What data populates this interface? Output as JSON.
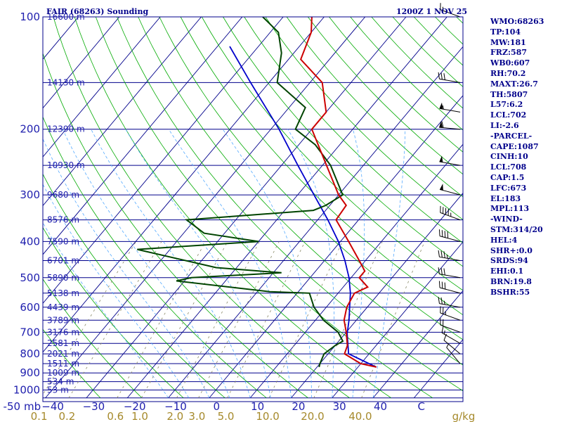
{
  "header": {
    "station": "FAIR (68263) Sounding",
    "time": "1200Z  1 NOV 25"
  },
  "stats": [
    "WMO:68263",
    "TP:104",
    "MW:181",
    "FRZ:587",
    "WB0:607",
    "RH:70.2",
    "MAXT:26.7",
    "TH:5807",
    "L57:6.2",
    "LCL:702",
    "LI:-2.6",
    "-PARCEL-",
    "CAPE:1087",
    "CINH:10",
    "LCL:708",
    "CAP:1.5",
    "LFC:673",
    "EL:183",
    "MPL:113",
    "-WIND-",
    "STM:314/20",
    "HEL:4",
    "SHR+:0.0",
    "SRDS:94",
    "EHI:0.1",
    "BRN:19.8",
    "BSHR:55"
  ],
  "colors": {
    "isobar": "#00008b",
    "isotherm": "#00008b",
    "dryAdiabat": "#00aa00",
    "moistAdiabat": "#55aaff",
    "mixing": "#888866",
    "temp": "#cc0000",
    "dewpoint": "#004400",
    "parcel": "#0000cc",
    "frame": "#00008b",
    "wind": "#000000"
  },
  "chart_data": {
    "type": "line",
    "title": "FAIR (68263) Sounding",
    "xlabel": "Temperature (C)",
    "ylabel": "Pressure (mb)",
    "axis_unit_label": "mb",
    "mixing_unit_label": "g/kg",
    "pressure_ticks": [
      100,
      200,
      300,
      400,
      500,
      600,
      700,
      800,
      900,
      1000
    ],
    "temperature_ticks": [
      -50,
      -40,
      -30,
      -20,
      -10,
      0,
      10,
      20,
      30,
      40,
      50
    ],
    "temperature_tick_labels": [
      "-50",
      "−40",
      "−30",
      "−20",
      "−10",
      "0",
      "10",
      "20",
      "30",
      "40",
      "C"
    ],
    "mixing_ratio_labels": [
      "0.1",
      "0.2",
      "0.6",
      "1.0",
      "2.0",
      "3.0",
      "5.0",
      "10.0",
      "20.0",
      "40.0"
    ],
    "height_labels": [
      {
        "p": 100,
        "label": "16600 m"
      },
      {
        "p": 150,
        "label": "14130 m"
      },
      {
        "p": 200,
        "label": "12390 m"
      },
      {
        "p": 250,
        "label": "10930 m"
      },
      {
        "p": 300,
        "label": "9680 m"
      },
      {
        "p": 350,
        "label": "8576 m"
      },
      {
        "p": 400,
        "label": "7590 m"
      },
      {
        "p": 450,
        "label": "6701 m"
      },
      {
        "p": 500,
        "label": "5890 m"
      },
      {
        "p": 550,
        "label": "5138 m"
      },
      {
        "p": 600,
        "label": "4439 m"
      },
      {
        "p": 650,
        "label": "3789 m"
      },
      {
        "p": 700,
        "label": "3176 m"
      },
      {
        "p": 750,
        "label": "2581 m"
      },
      {
        "p": 800,
        "label": "2021 m"
      },
      {
        "p": 850,
        "label": "1511 m"
      },
      {
        "p": 900,
        "label": "1009 m"
      },
      {
        "p": 950,
        "label": "534 m"
      },
      {
        "p": 1000,
        "label": "53 m"
      }
    ],
    "series": [
      {
        "name": "temperature",
        "points": [
          [
            868,
            34.5
          ],
          [
            850,
            30
          ],
          [
            800,
            24
          ],
          [
            760,
            23
          ],
          [
            700,
            20
          ],
          [
            650,
            17
          ],
          [
            600,
            15
          ],
          [
            550,
            14
          ],
          [
            530,
            16
          ],
          [
            500,
            12
          ],
          [
            480,
            12
          ],
          [
            450,
            8.5
          ],
          [
            400,
            2
          ],
          [
            350,
            -5.5
          ],
          [
            320,
            -6
          ],
          [
            300,
            -10
          ],
          [
            250,
            -19
          ],
          [
            200,
            -30
          ],
          [
            180,
            -30
          ],
          [
            150,
            -37
          ],
          [
            130,
            -47
          ],
          [
            110,
            -50
          ],
          [
            100,
            -53
          ]
        ]
      },
      {
        "name": "dewpoint",
        "points": [
          [
            868,
            20.5
          ],
          [
            850,
            20
          ],
          [
            800,
            19
          ],
          [
            760,
            20
          ],
          [
            740,
            21
          ],
          [
            700,
            18
          ],
          [
            650,
            12
          ],
          [
            600,
            7
          ],
          [
            550,
            3
          ],
          [
            545,
            -7
          ],
          [
            510,
            -32
          ],
          [
            500,
            -29
          ],
          [
            485,
            -8
          ],
          [
            470,
            -25
          ],
          [
            420,
            -48
          ],
          [
            400,
            -20
          ],
          [
            380,
            -35
          ],
          [
            350,
            -42
          ],
          [
            330,
            -13
          ],
          [
            320,
            -11
          ],
          [
            300,
            -9
          ],
          [
            250,
            -18
          ],
          [
            220,
            -26
          ],
          [
            200,
            -34
          ],
          [
            175,
            -36
          ],
          [
            150,
            -48
          ],
          [
            125,
            -53
          ],
          [
            110,
            -58
          ],
          [
            100,
            -65
          ]
        ]
      },
      {
        "name": "parcel",
        "points": [
          [
            868,
            34.5
          ],
          [
            800,
            25
          ],
          [
            706,
            20.5
          ],
          [
            650,
            18.2
          ],
          [
            600,
            15.7
          ],
          [
            550,
            13
          ],
          [
            500,
            9.5
          ],
          [
            450,
            5
          ],
          [
            400,
            -0.5
          ],
          [
            350,
            -7.5
          ],
          [
            300,
            -16
          ],
          [
            250,
            -26
          ],
          [
            200,
            -38
          ],
          [
            150,
            -54.5
          ],
          [
            120,
            -67
          ]
        ]
      }
    ],
    "wind_barbs": [
      {
        "p": 100,
        "dir": 290,
        "spd": 15
      },
      {
        "p": 150,
        "dir": 280,
        "spd": 30
      },
      {
        "p": 180,
        "dir": 280,
        "spd": 55
      },
      {
        "p": 200,
        "dir": 275,
        "spd": 60
      },
      {
        "p": 250,
        "dir": 280,
        "spd": 50
      },
      {
        "p": 300,
        "dir": 285,
        "spd": 50
      },
      {
        "p": 350,
        "dir": 290,
        "spd": 45
      },
      {
        "p": 400,
        "dir": 285,
        "spd": 40
      },
      {
        "p": 450,
        "dir": 280,
        "spd": 35
      },
      {
        "p": 500,
        "dir": 280,
        "spd": 30
      },
      {
        "p": 550,
        "dir": 285,
        "spd": 30
      },
      {
        "p": 600,
        "dir": 280,
        "spd": 25
      },
      {
        "p": 650,
        "dir": 290,
        "spd": 25
      },
      {
        "p": 700,
        "dir": 290,
        "spd": 20
      },
      {
        "p": 750,
        "dir": 300,
        "spd": 15
      },
      {
        "p": 800,
        "dir": 310,
        "spd": 10
      },
      {
        "p": 850,
        "dir": 320,
        "spd": 5
      }
    ]
  }
}
